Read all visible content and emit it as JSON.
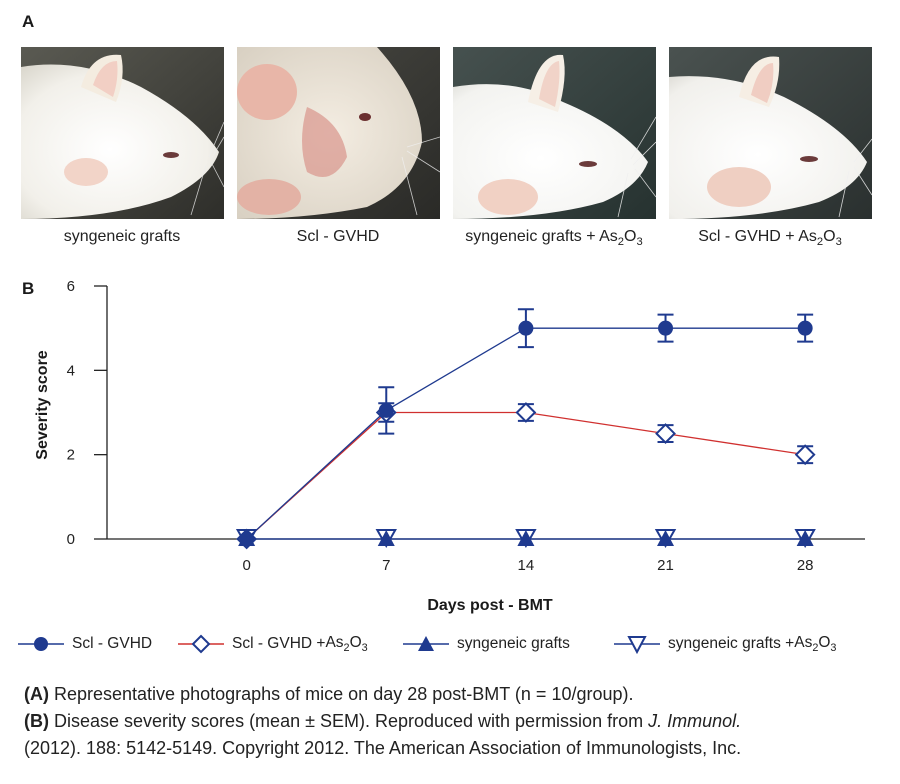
{
  "panel_a_label": "A",
  "panel_b_label": "B",
  "photos": [
    {
      "caption_base": "syngeneic grafts",
      "caption_formula": ""
    },
    {
      "caption_base": "Scl - GVHD",
      "caption_formula": ""
    },
    {
      "caption_base": "syngeneic grafts + ",
      "caption_formula": "As2O3"
    },
    {
      "caption_base": "Scl - GVHD + ",
      "caption_formula": "As2O3"
    }
  ],
  "chart_data": {
    "type": "line",
    "xlabel": "Days post - BMT",
    "ylabel": "Severity score",
    "x": [
      0,
      7,
      14,
      21,
      28
    ],
    "xticks": [
      "0",
      "7",
      "14",
      "21",
      "28"
    ],
    "yticks": [
      "0",
      "2",
      "4",
      "6"
    ],
    "ylim": [
      0,
      6
    ],
    "xlim": [
      -7,
      31
    ],
    "series": [
      {
        "name": "Scl - GVHD",
        "marker": "circle",
        "color": "#1f3a8f",
        "line_color": "#1f3a8f",
        "values": [
          0,
          3.05,
          5.0,
          5.0,
          5.0
        ],
        "sem": [
          0,
          0.55,
          0.45,
          0.32,
          0.32
        ]
      },
      {
        "name": "Scl - GVHD + As2O3",
        "marker": "diamond-open",
        "color": "#1f3a8f",
        "line_color": "#d0302f",
        "values": [
          0,
          3.0,
          3.0,
          2.5,
          2.0
        ],
        "sem": [
          0,
          0.22,
          0.2,
          0.2,
          0.2
        ]
      },
      {
        "name": "syngeneic grafts",
        "marker": "triangle-up",
        "color": "#1f3a8f",
        "line_color": "#1f3a8f",
        "values": [
          0,
          0,
          0,
          0,
          0
        ],
        "sem": [
          0,
          0,
          0,
          0,
          0
        ]
      },
      {
        "name": "syngeneic grafts + As2O3",
        "marker": "triangle-down-open",
        "color": "#1f3a8f",
        "line_color": "#1f3a8f",
        "values": [
          0,
          0,
          0,
          0,
          0
        ],
        "sem": [
          0,
          0,
          0,
          0,
          0
        ]
      }
    ]
  },
  "legend": [
    {
      "base": "Scl - GVHD",
      "formula": ""
    },
    {
      "base": "Scl - GVHD + ",
      "formula": "As2O3"
    },
    {
      "base": "syngeneic grafts",
      "formula": ""
    },
    {
      "base": "syngeneic grafts + ",
      "formula": "As2O3"
    }
  ],
  "caption": {
    "a_label": "(A)",
    "a_text": " Representative photographs of mice on day 28 post-BMT (n = 10/group).",
    "b_label": "(B)",
    "b_text": " Disease severity scores (mean ± SEM). Reproduced with permission from ",
    "journal": "J. Immunol.",
    "b_text2": "(2012). 188: 5142-5149. Copyright 2012. The American Association of Immunologists, Inc."
  }
}
